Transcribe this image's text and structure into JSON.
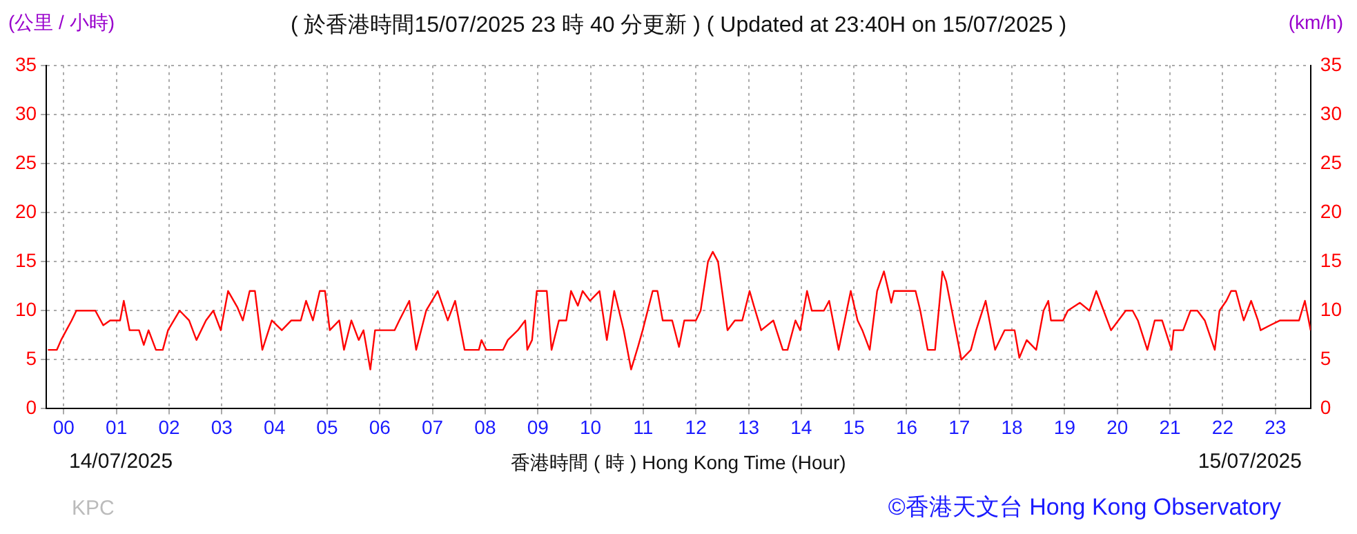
{
  "chart_data": {
    "type": "line",
    "title": "( 於香港時間15/07/2025 23 時 40 分更新 ) ( Updated at 23:40H on 15/07/2025 )",
    "ylabel": "(公里 / 小時)",
    "y2label": "(km/h)",
    "xlabel": "香港時間 ( 時 ) Hong Kong Time (Hour)",
    "annotations": [
      "14/07/2025",
      "15/07/2025",
      "KPC",
      "©香港天文台 Hong Kong Observatory"
    ],
    "x": [
      -0.3,
      -0.13,
      -0.05,
      0.05,
      0.15,
      0.24,
      0.6,
      0.75,
      0.88,
      1.07,
      1.14,
      1.25,
      1.43,
      1.52,
      1.61,
      1.75,
      1.88,
      1.98,
      2.2,
      2.38,
      2.52,
      2.7,
      2.84,
      2.98,
      3.12,
      3.3,
      3.4,
      3.53,
      3.63,
      3.77,
      3.95,
      4.14,
      4.32,
      4.5,
      4.6,
      4.73,
      4.86,
      4.96,
      5.05,
      5.23,
      5.32,
      5.46,
      5.6,
      5.69,
      5.82,
      5.91,
      6.28,
      6.37,
      6.56,
      6.69,
      6.88,
      7.1,
      7.29,
      7.43,
      7.61,
      7.88,
      7.93,
      8.02,
      8.34,
      8.43,
      8.62,
      8.76,
      8.8,
      8.89,
      8.98,
      9.17,
      9.26,
      9.4,
      9.54,
      9.63,
      9.76,
      9.85,
      9.99,
      10.17,
      10.31,
      10.45,
      10.63,
      10.77,
      10.9,
      10.99,
      11.18,
      11.27,
      11.37,
      11.55,
      11.68,
      11.78,
      12.0,
      12.09,
      12.23,
      12.32,
      12.42,
      12.6,
      12.74,
      12.88,
      13.02,
      13.1,
      13.24,
      13.47,
      13.65,
      13.74,
      13.89,
      13.98,
      14.11,
      14.2,
      14.43,
      14.53,
      14.71,
      14.94,
      15.07,
      15.16,
      15.3,
      15.44,
      15.57,
      15.71,
      15.76,
      16.17,
      16.26,
      16.4,
      16.54,
      16.68,
      16.75,
      16.86,
      17.04,
      17.22,
      17.32,
      17.5,
      17.68,
      17.86,
      18.05,
      18.14,
      18.28,
      18.46,
      18.6,
      18.69,
      18.74,
      18.97,
      19.06,
      19.29,
      19.47,
      19.6,
      19.74,
      19.88,
      20.16,
      20.29,
      20.39,
      20.57,
      20.71,
      20.85,
      21.03,
      21.07,
      21.25,
      21.39,
      21.52,
      21.66,
      21.85,
      21.94,
      22.07,
      22.16,
      22.25,
      22.4,
      22.54,
      22.67,
      22.72,
      22.9,
      23.09,
      23.22,
      23.36,
      23.45,
      23.56,
      23.67
    ],
    "series": [
      {
        "color": "#ff0000",
        "values": [
          6,
          6,
          7,
          8,
          9,
          10,
          10,
          8.5,
          9,
          9,
          11,
          8,
          8,
          6.5,
          8,
          6,
          6,
          8,
          10,
          9,
          7,
          9,
          10,
          8,
          12,
          10.3,
          9,
          12,
          12,
          6,
          9,
          8,
          9,
          9,
          11,
          9,
          12,
          12,
          8,
          9,
          6,
          9,
          7,
          8,
          4,
          8,
          8,
          9,
          11,
          6,
          10,
          12,
          9,
          11,
          6,
          6,
          7,
          6,
          6,
          7,
          8,
          9,
          6,
          7,
          12,
          12,
          6,
          9,
          9,
          12,
          10.5,
          12,
          11,
          12,
          7,
          12,
          8,
          4,
          6.3,
          8,
          12,
          12,
          9,
          9,
          6.3,
          9,
          9,
          10,
          15,
          16,
          15,
          8,
          9,
          9,
          12,
          10.5,
          8,
          9,
          6,
          6,
          9,
          8,
          12,
          10,
          10,
          11,
          6,
          12,
          9,
          8,
          6,
          12,
          14,
          10.8,
          12,
          12,
          10,
          6,
          6,
          14,
          13,
          10,
          5,
          6,
          8,
          11,
          6,
          8,
          8,
          5.2,
          7,
          6,
          10,
          11,
          9,
          9,
          10,
          10.8,
          10,
          12,
          10,
          8,
          10,
          10,
          9,
          6,
          9,
          9,
          6,
          8,
          8,
          10,
          10,
          9,
          6,
          10,
          11,
          12,
          12,
          9,
          11,
          9,
          8,
          8.5,
          9,
          9,
          9,
          9,
          11,
          8
        ]
      }
    ],
    "xlim": [
      -0.33,
      23.67
    ],
    "xticks": [
      {
        "value": 0,
        "label": "00"
      },
      {
        "value": 1,
        "label": "01"
      },
      {
        "value": 2,
        "label": "02"
      },
      {
        "value": 3,
        "label": "03"
      },
      {
        "value": 4,
        "label": "04"
      },
      {
        "value": 5,
        "label": "05"
      },
      {
        "value": 6,
        "label": "06"
      },
      {
        "value": 7,
        "label": "07"
      },
      {
        "value": 8,
        "label": "08"
      },
      {
        "value": 9,
        "label": "09"
      },
      {
        "value": 10,
        "label": "10"
      },
      {
        "value": 11,
        "label": "11"
      },
      {
        "value": 12,
        "label": "12"
      },
      {
        "value": 13,
        "label": "13"
      },
      {
        "value": 14,
        "label": "14"
      },
      {
        "value": 15,
        "label": "15"
      },
      {
        "value": 16,
        "label": "16"
      },
      {
        "value": 17,
        "label": "17"
      },
      {
        "value": 18,
        "label": "18"
      },
      {
        "value": 19,
        "label": "19"
      },
      {
        "value": 20,
        "label": "20"
      },
      {
        "value": 21,
        "label": "21"
      },
      {
        "value": 22,
        "label": "22"
      },
      {
        "value": 23,
        "label": "23"
      }
    ],
    "ylim": [
      0,
      35
    ],
    "yticks": [
      0,
      5,
      10,
      15,
      20,
      25,
      30,
      35
    ],
    "y2lim": [
      0,
      35
    ],
    "y2ticks": [
      0,
      5,
      10,
      15,
      20,
      25,
      30,
      35
    ],
    "grid": true,
    "legend": false,
    "marker": "none",
    "line_style": "solid"
  }
}
